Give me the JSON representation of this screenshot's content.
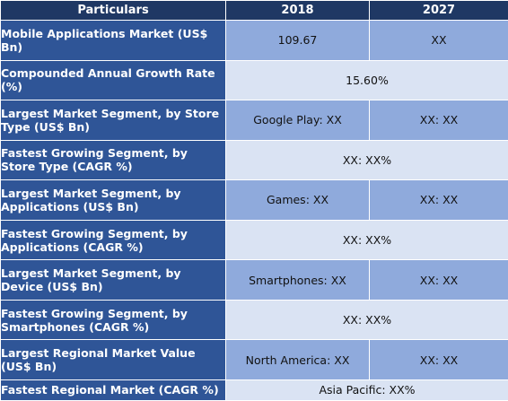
{
  "header": {
    "particulars": "Particulars",
    "col_2018": "2018",
    "col_2027": "2027"
  },
  "rows": [
    {
      "label": "Mobile Applications Market (US$ Bn)",
      "v2018": "109.67",
      "v2027": "XX"
    },
    {
      "label": "Compounded Annual Growth Rate (%)",
      "merged": "15.60%"
    },
    {
      "label": "Largest Market Segment, by Store Type (US$ Bn)",
      "v2018": "Google Play: XX",
      "v2027": "XX: XX"
    },
    {
      "label": "Fastest Growing Segment, by Store Type (CAGR %)",
      "merged": "XX: XX%"
    },
    {
      "label": "Largest Market Segment, by Applications (US$ Bn)",
      "v2018": "Games: XX",
      "v2027": "XX: XX"
    },
    {
      "label": "Fastest Growing Segment, by Applications (CAGR %)",
      "merged": "XX: XX%"
    },
    {
      "label": "Largest Market Segment, by Device (US$ Bn)",
      "v2018": "Smartphones: XX",
      "v2027": "XX: XX"
    },
    {
      "label": "Fastest Growing Segment, by Smartphones (CAGR %)",
      "merged": "XX: XX%"
    },
    {
      "label": "Largest Regional Market Value (US$ Bn)",
      "v2018": "North America: XX",
      "v2027": "XX: XX"
    },
    {
      "label": "Fastest Regional Market (CAGR %)",
      "merged": "Asia Pacific: XX%"
    }
  ]
}
